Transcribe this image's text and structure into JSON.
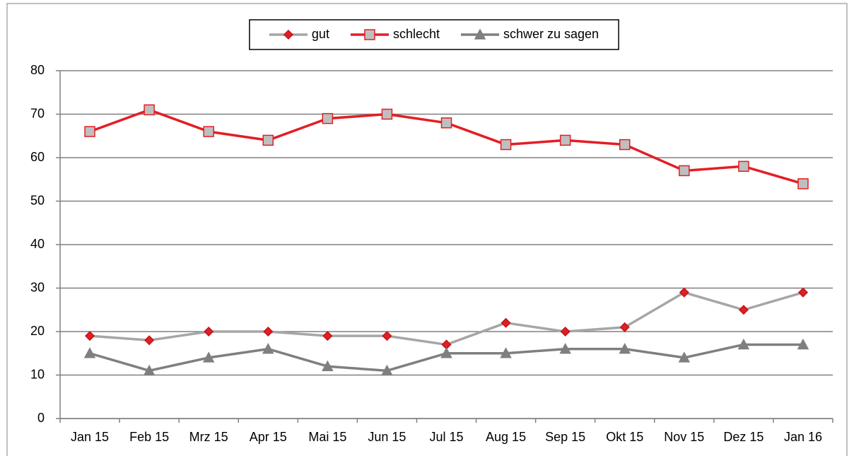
{
  "chart_data": {
    "type": "line",
    "categories": [
      "Jan 15",
      "Feb 15",
      "Mrz 15",
      "Apr 15",
      "Mai 15",
      "Jun 15",
      "Jul 15",
      "Aug 15",
      "Sep 15",
      "Okt 15",
      "Nov 15",
      "Dez 15",
      "Jan 16"
    ],
    "series": [
      {
        "name": "gut",
        "color": "#a6a6a6",
        "marker": "diamond",
        "marker_fill": "#e31e24",
        "marker_edge": "#c0161c",
        "values": [
          19,
          18,
          20,
          20,
          19,
          19,
          17,
          22,
          20,
          21,
          29,
          25,
          29
        ]
      },
      {
        "name": "schlecht",
        "color": "#e31e24",
        "marker": "square",
        "marker_fill": "#bfbfbf",
        "marker_edge": "#e31e24",
        "values": [
          66,
          71,
          66,
          64,
          69,
          70,
          68,
          63,
          64,
          63,
          57,
          58,
          54
        ]
      },
      {
        "name": "schwer zu sagen",
        "color": "#7f7f7f",
        "marker": "triangle",
        "marker_fill": "#7f7f7f",
        "marker_edge": "#7f7f7f",
        "values": [
          15,
          11,
          14,
          16,
          12,
          11,
          15,
          15,
          16,
          16,
          14,
          17,
          17
        ]
      }
    ],
    "ylim": [
      0,
      80
    ],
    "yticks": [
      0,
      10,
      20,
      30,
      40,
      50,
      60,
      70,
      80
    ],
    "grid": true,
    "legend": "top"
  }
}
